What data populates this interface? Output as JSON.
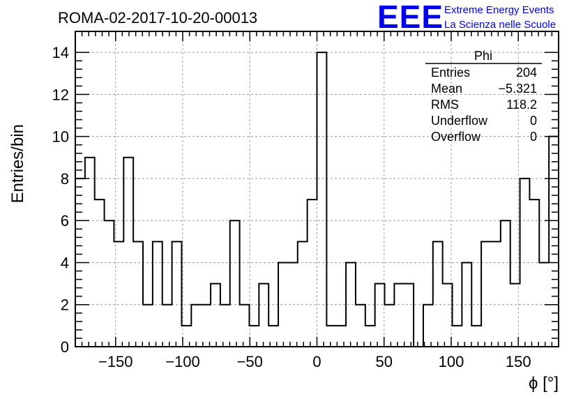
{
  "chart_data": {
    "type": "bar",
    "title": "ROMA-02-2017-10-20-00013",
    "xlabel": "ϕ [°]",
    "ylabel": "Entries/bin",
    "xlim": [
      -180,
      180
    ],
    "ylim": [
      0,
      15
    ],
    "grid": true,
    "bin_width": 7.2,
    "x_ticks": [
      -150,
      -100,
      -50,
      0,
      50,
      100,
      150
    ],
    "x_tick_labels": [
      "−150",
      "−100",
      "−50",
      "0",
      "50",
      "100",
      "150"
    ],
    "y_ticks": [
      0,
      2,
      4,
      6,
      8,
      10,
      12,
      14
    ],
    "y_tick_labels": [
      "0",
      "2",
      "4",
      "6",
      "8",
      "10",
      "12",
      "14"
    ],
    "values": [
      8,
      9,
      7,
      6,
      5,
      9,
      5,
      2,
      5,
      2,
      5,
      1,
      2,
      2,
      3,
      2,
      6,
      2,
      1,
      3,
      1,
      4,
      4,
      5,
      7,
      14,
      1,
      1,
      4,
      2,
      1,
      3,
      2,
      3,
      3,
      0,
      2,
      5,
      3,
      1,
      4,
      1,
      5,
      5,
      6,
      3,
      8,
      7,
      4,
      10
    ],
    "stats": {
      "name": "Phi",
      "rows": [
        {
          "label": "Entries",
          "value": "204"
        },
        {
          "label": "Mean",
          "value": "−5.321"
        },
        {
          "label": "RMS",
          "value": "118.2"
        },
        {
          "label": "Underflow",
          "value": "0"
        },
        {
          "label": "Overflow",
          "value": "0"
        }
      ]
    },
    "colors": {
      "line": "#000000",
      "grid": "#999999",
      "logo": "#0000ee"
    }
  },
  "logo": {
    "mark": "EEE",
    "line1": "Extreme Energy Events",
    "line2": "La Scienza nelle Scuole"
  }
}
